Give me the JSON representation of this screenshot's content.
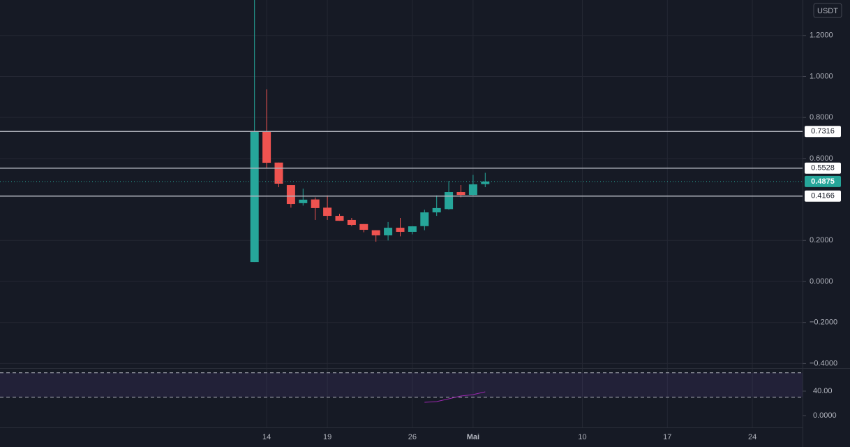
{
  "chart_data": [
    {
      "type": "candlestick",
      "unit": "USDT",
      "categories": [
        null,
        null,
        null,
        null,
        null,
        null,
        null,
        null,
        null,
        null,
        null,
        null,
        null,
        null,
        null,
        null,
        null,
        null,
        null,
        null,
        null,
        "14",
        null,
        null,
        null,
        null,
        "19",
        null,
        null,
        null,
        null,
        null,
        null,
        "26",
        null,
        null,
        null,
        null,
        "Mai",
        null,
        null,
        null,
        null,
        null,
        null,
        null,
        null,
        "10",
        null,
        null,
        null,
        null,
        null,
        null,
        "17",
        null,
        null,
        null,
        null,
        null,
        null,
        "24",
        null,
        null,
        null
      ],
      "open": [
        null,
        null,
        null,
        null,
        null,
        null,
        null,
        null,
        null,
        null,
        null,
        null,
        null,
        null,
        null,
        null,
        null,
        null,
        null,
        null,
        0.095,
        0.73,
        0.58,
        0.47,
        0.382,
        0.4,
        0.36,
        0.32,
        0.3,
        0.28,
        0.25,
        0.225,
        0.262,
        0.242,
        0.27,
        0.337,
        0.353,
        0.436,
        0.422,
        0.475,
        null,
        null,
        null,
        null,
        null,
        null,
        null,
        null,
        null,
        null,
        null,
        null,
        null,
        null,
        null,
        null,
        null,
        null,
        null,
        null,
        null,
        null,
        null,
        null,
        null
      ],
      "high": [
        null,
        null,
        null,
        null,
        null,
        null,
        null,
        null,
        null,
        null,
        null,
        null,
        null,
        null,
        null,
        null,
        null,
        null,
        null,
        null,
        1.4,
        0.937,
        0.58,
        0.47,
        0.453,
        0.41,
        0.42,
        0.33,
        0.31,
        0.28,
        0.25,
        0.29,
        0.31,
        0.27,
        0.35,
        0.42,
        0.49,
        0.47,
        0.52,
        0.53,
        null,
        null,
        null,
        null,
        null,
        null,
        null,
        null,
        null,
        null,
        null,
        null,
        null,
        null,
        null,
        null,
        null,
        null,
        null,
        null,
        null,
        null,
        null,
        null,
        null
      ],
      "low": [
        null,
        null,
        null,
        null,
        null,
        null,
        null,
        null,
        null,
        null,
        null,
        null,
        null,
        null,
        null,
        null,
        null,
        null,
        null,
        null,
        0.095,
        0.55,
        0.46,
        0.36,
        0.37,
        0.3,
        0.3,
        0.296,
        0.27,
        0.24,
        0.194,
        0.2,
        0.22,
        0.23,
        0.25,
        0.32,
        0.35,
        0.41,
        0.42,
        0.46,
        null,
        null,
        null,
        null,
        null,
        null,
        null,
        null,
        null,
        null,
        null,
        null,
        null,
        null,
        null,
        null,
        null,
        null,
        null,
        null,
        null,
        null,
        null,
        null,
        null
      ],
      "close": [
        null,
        null,
        null,
        null,
        null,
        null,
        null,
        null,
        null,
        null,
        null,
        null,
        null,
        null,
        null,
        null,
        null,
        null,
        null,
        null,
        0.73,
        0.579,
        0.477,
        0.378,
        0.399,
        0.358,
        0.32,
        0.296,
        0.276,
        0.252,
        0.225,
        0.262,
        0.242,
        0.269,
        0.337,
        0.358,
        0.436,
        0.422,
        0.474,
        0.4875,
        null,
        null,
        null,
        null,
        null,
        null,
        null,
        null,
        null,
        null,
        null,
        null,
        null,
        null,
        null,
        null,
        null,
        null,
        null,
        null,
        null,
        null,
        null,
        null,
        null
      ],
      "up_color": "#26a69a",
      "down_color": "#ef5350",
      "ylim": [
        -0.4225,
        1.373
      ],
      "yticks": [
        {
          "value": -0.4,
          "label": "−0.4000"
        },
        {
          "value": -0.2,
          "label": "−0.2000"
        },
        {
          "value": 0,
          "label": "0.0000"
        },
        {
          "value": 0.2,
          "label": "0.2000"
        },
        {
          "value": 0.6,
          "label": "0.6000"
        },
        {
          "value": 0.8,
          "label": "0.8000"
        },
        {
          "value": 1.0,
          "label": "1.0000"
        },
        {
          "value": 1.2,
          "label": "1.2000"
        }
      ],
      "levels": [
        0.7316,
        0.5528,
        0.4166
      ],
      "last_price": 0.4875,
      "grid": true
    },
    {
      "type": "line",
      "color": "#9c27b0",
      "values": [
        null,
        null,
        null,
        null,
        null,
        null,
        null,
        null,
        null,
        null,
        null,
        null,
        null,
        null,
        null,
        null,
        null,
        null,
        null,
        null,
        null,
        null,
        null,
        null,
        null,
        null,
        null,
        null,
        null,
        null,
        null,
        null,
        null,
        null,
        21.7,
        22.9,
        27.4,
        32.0,
        34.3,
        38.9,
        null,
        null,
        null,
        null,
        null,
        null,
        null,
        null,
        null,
        null,
        null,
        null,
        null,
        null,
        null,
        null,
        null,
        null,
        null,
        null,
        null,
        null,
        null,
        null,
        null
      ],
      "ylim": [
        -19.4,
        77.7
      ],
      "yticks": [
        {
          "value": 0,
          "label": "0.0000"
        },
        {
          "value": 40,
          "label": "40.00"
        }
      ],
      "bands": [
        30,
        70
      ]
    }
  ]
}
